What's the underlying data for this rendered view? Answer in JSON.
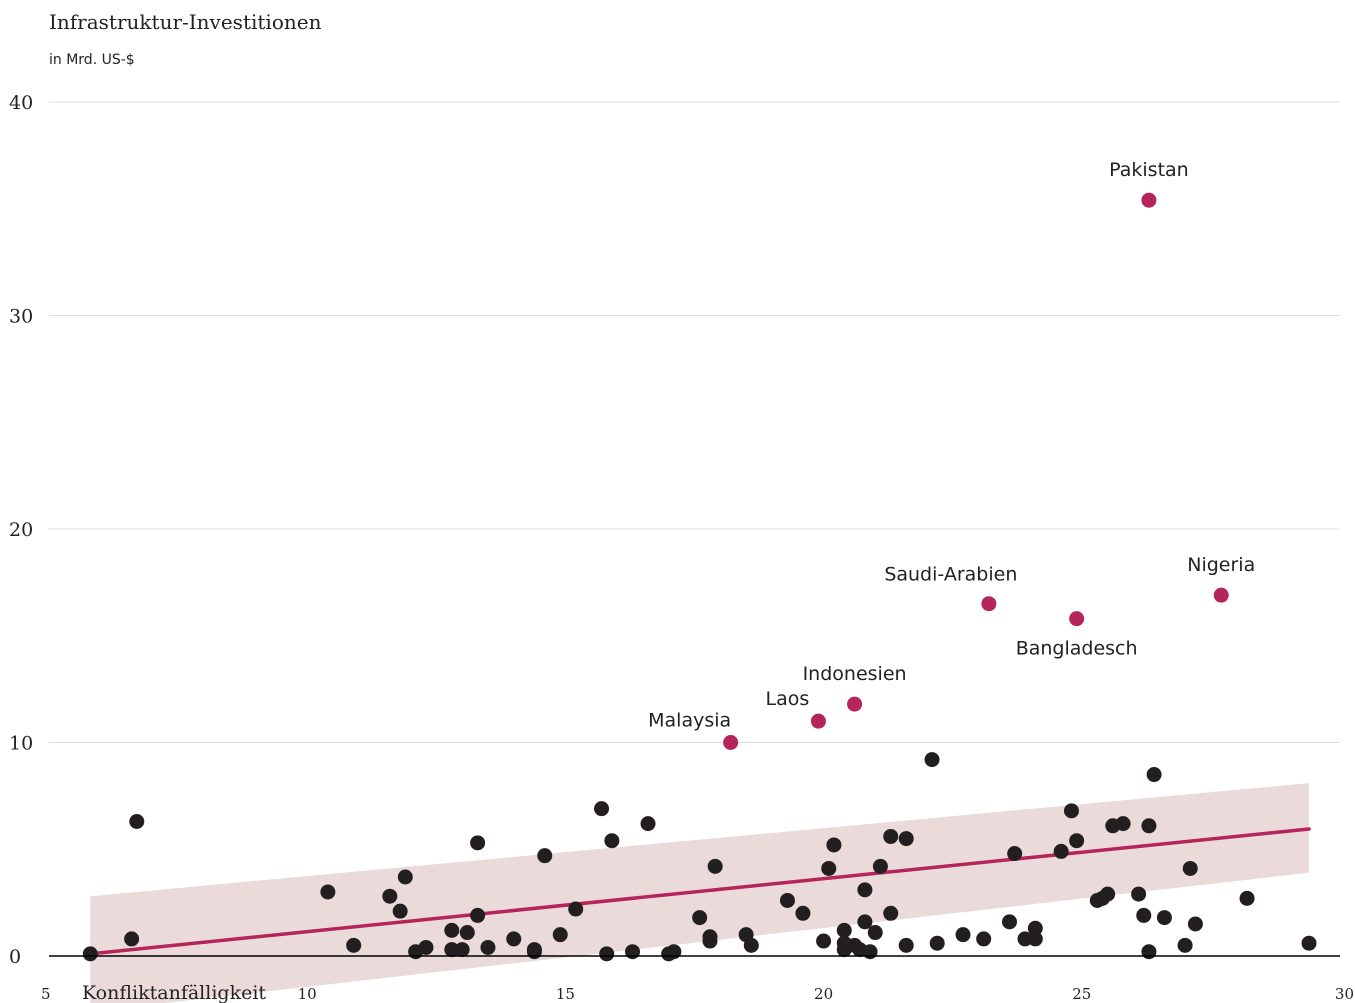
{
  "chart_data": {
    "type": "scatter",
    "title": "Infrastruktur-Investitionen",
    "ylabel_unit": "in Mrd. US-$",
    "xlabel": "Konfliktanfälligkeit",
    "xlim": [
      5,
      30
    ],
    "ylim": [
      0,
      40
    ],
    "x_ticks": [
      5,
      10,
      15,
      20,
      25,
      30
    ],
    "y_ticks": [
      0,
      10,
      20,
      30,
      40
    ],
    "grid": true,
    "colors": {
      "point": "#231f20",
      "highlight": "#b5245a",
      "trend": "#b5245a",
      "band": "#e8d6d6",
      "grid": "#dddddd",
      "axis": "#000000",
      "text": "#222222"
    },
    "trend": {
      "x": [
        5.8,
        29.4
      ],
      "y": [
        0.1,
        5.95
      ],
      "band_lower": [
        -2.6,
        3.9
      ],
      "band_upper": [
        2.8,
        8.1
      ]
    },
    "highlighted": [
      {
        "label": "Pakistan",
        "x": 26.3,
        "y": 35.4,
        "label_pos": "above"
      },
      {
        "label": "Nigeria",
        "x": 27.7,
        "y": 16.9,
        "label_pos": "above"
      },
      {
        "label": "Saudi-Arabien",
        "x": 23.2,
        "y": 16.5,
        "label_pos": "above-left"
      },
      {
        "label": "Bangladesch",
        "x": 24.9,
        "y": 15.8,
        "label_pos": "below"
      },
      {
        "label": "Indonesien",
        "x": 20.6,
        "y": 11.8,
        "label_pos": "above"
      },
      {
        "label": "Laos",
        "x": 19.9,
        "y": 11.0,
        "label_pos": "above-left"
      },
      {
        "label": "Malaysia",
        "x": 18.2,
        "y": 10.0,
        "label_pos": "above-left"
      }
    ],
    "points": [
      [
        5.8,
        0.1
      ],
      [
        6.6,
        0.8
      ],
      [
        6.7,
        6.3
      ],
      [
        10.4,
        3.0
      ],
      [
        10.9,
        0.5
      ],
      [
        11.6,
        2.8
      ],
      [
        11.8,
        2.1
      ],
      [
        11.9,
        3.7
      ],
      [
        12.1,
        0.2
      ],
      [
        12.3,
        0.4
      ],
      [
        12.8,
        1.2
      ],
      [
        12.8,
        0.3
      ],
      [
        13.0,
        0.3
      ],
      [
        13.1,
        1.1
      ],
      [
        13.3,
        1.9
      ],
      [
        13.3,
        5.3
      ],
      [
        13.5,
        0.4
      ],
      [
        14.0,
        0.8
      ],
      [
        14.4,
        0.2
      ],
      [
        14.4,
        0.3
      ],
      [
        14.6,
        4.7
      ],
      [
        14.9,
        1.0
      ],
      [
        15.2,
        2.2
      ],
      [
        15.7,
        6.9
      ],
      [
        15.8,
        0.1
      ],
      [
        15.9,
        5.4
      ],
      [
        16.3,
        0.2
      ],
      [
        16.6,
        6.2
      ],
      [
        17.0,
        0.1
      ],
      [
        17.1,
        0.2
      ],
      [
        17.6,
        1.8
      ],
      [
        17.8,
        0.9
      ],
      [
        17.8,
        0.7
      ],
      [
        17.9,
        4.2
      ],
      [
        18.5,
        1.0
      ],
      [
        18.6,
        0.5
      ],
      [
        19.3,
        2.6
      ],
      [
        19.6,
        2.0
      ],
      [
        20.0,
        0.7
      ],
      [
        20.1,
        4.1
      ],
      [
        20.2,
        5.2
      ],
      [
        20.4,
        0.3
      ],
      [
        20.4,
        0.6
      ],
      [
        20.4,
        1.2
      ],
      [
        20.6,
        0.5
      ],
      [
        20.7,
        0.3
      ],
      [
        20.8,
        3.1
      ],
      [
        20.8,
        1.6
      ],
      [
        21.0,
        1.1
      ],
      [
        20.9,
        0.2
      ],
      [
        21.1,
        4.2
      ],
      [
        21.3,
        5.6
      ],
      [
        21.3,
        2.0
      ],
      [
        21.6,
        5.5
      ],
      [
        21.6,
        0.5
      ],
      [
        22.1,
        9.2
      ],
      [
        22.2,
        0.6
      ],
      [
        22.7,
        1.0
      ],
      [
        23.1,
        0.8
      ],
      [
        23.6,
        1.6
      ],
      [
        23.7,
        4.8
      ],
      [
        23.9,
        0.8
      ],
      [
        24.1,
        0.8
      ],
      [
        24.1,
        1.3
      ],
      [
        24.6,
        4.9
      ],
      [
        24.8,
        6.8
      ],
      [
        24.9,
        5.4
      ],
      [
        25.3,
        2.6
      ],
      [
        25.4,
        2.7
      ],
      [
        25.5,
        2.9
      ],
      [
        25.6,
        6.1
      ],
      [
        25.8,
        6.2
      ],
      [
        26.1,
        2.9
      ],
      [
        26.2,
        1.9
      ],
      [
        26.3,
        6.1
      ],
      [
        26.3,
        0.2
      ],
      [
        26.4,
        8.5
      ],
      [
        26.6,
        1.8
      ],
      [
        27.0,
        0.5
      ],
      [
        27.1,
        4.1
      ],
      [
        27.2,
        1.5
      ],
      [
        28.2,
        2.7
      ],
      [
        29.4,
        0.6
      ]
    ]
  }
}
